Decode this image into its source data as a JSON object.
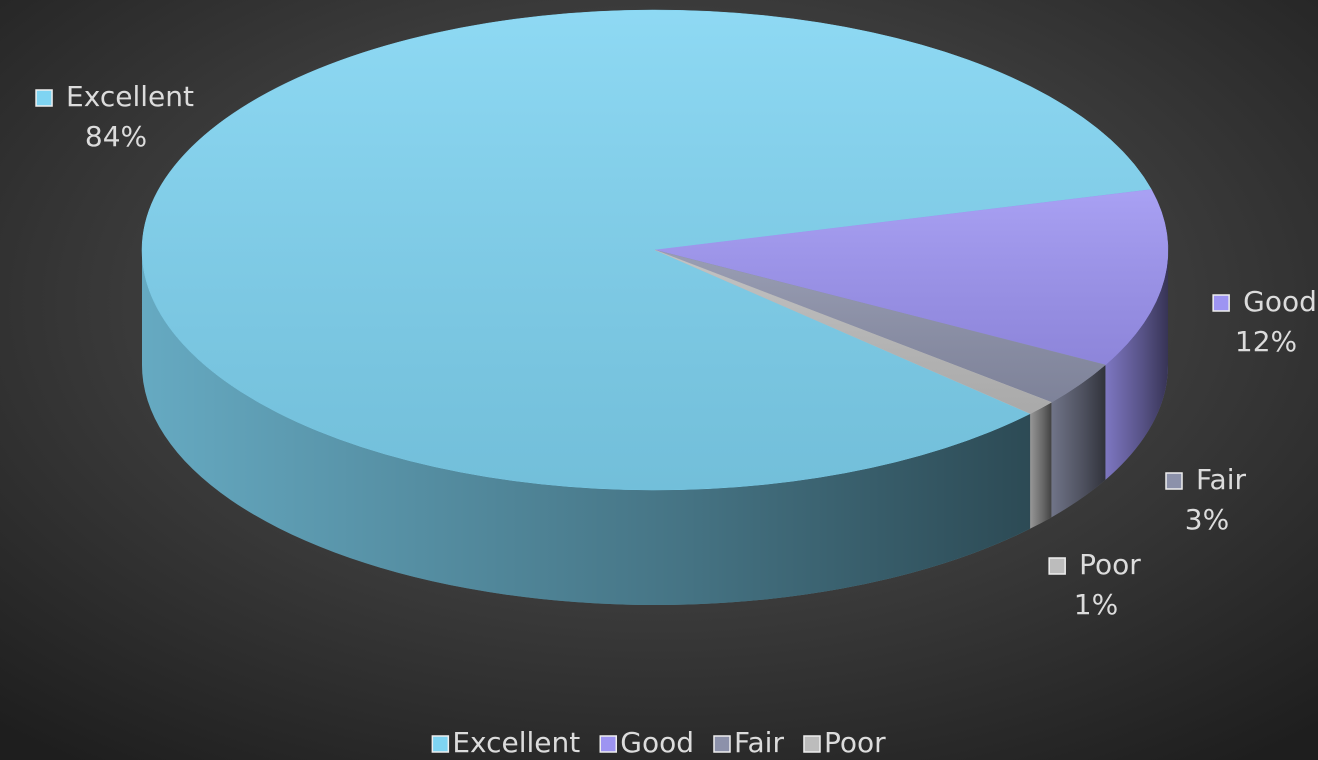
{
  "chart_data": {
    "type": "pie3d",
    "categories": [
      "Excellent",
      "Good",
      "Fair",
      "Poor"
    ],
    "values": [
      84,
      12,
      3,
      1
    ],
    "value_labels": [
      "84%",
      "12%",
      "3%",
      "1%"
    ],
    "colors": [
      "#7fd4f2",
      "#9d94f2",
      "#8c91aa",
      "#bcbcbc"
    ],
    "legend": "bottom"
  }
}
